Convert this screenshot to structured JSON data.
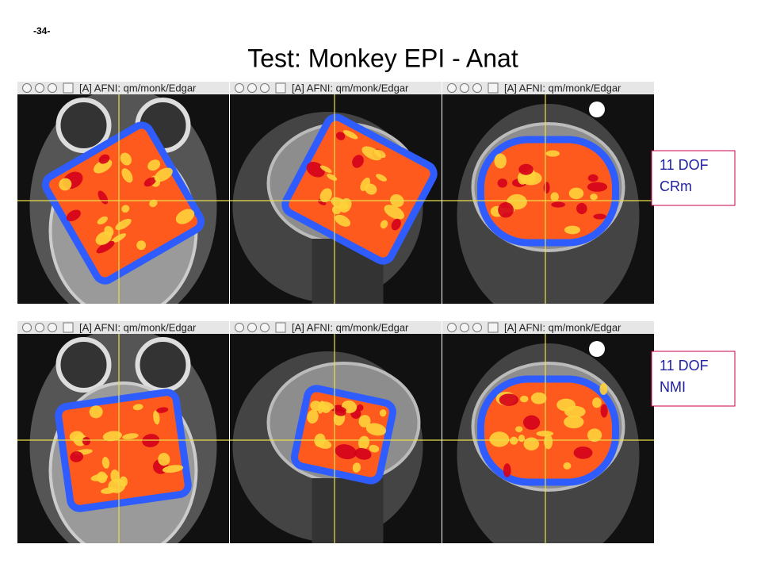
{
  "page_number": "-34-",
  "title": "Test: Monkey EPI - Anat",
  "rows": [
    {
      "label_lines": [
        "11 DOF",
        "CRm"
      ],
      "windows": [
        "[A] AFNI: qm/monk/Edgar",
        "[A] AFNI: qm/monk/Edgar",
        "[A] AFNI: qm/monk/Edgar"
      ]
    },
    {
      "label_lines": [
        "11 DOF",
        "NMI"
      ],
      "windows": [
        "[A] AFNI: qm/monk/Edgar",
        "[A] AFNI: qm/monk/Edgar",
        "[A] AFNI: qm/monk/Edgar"
      ]
    }
  ]
}
